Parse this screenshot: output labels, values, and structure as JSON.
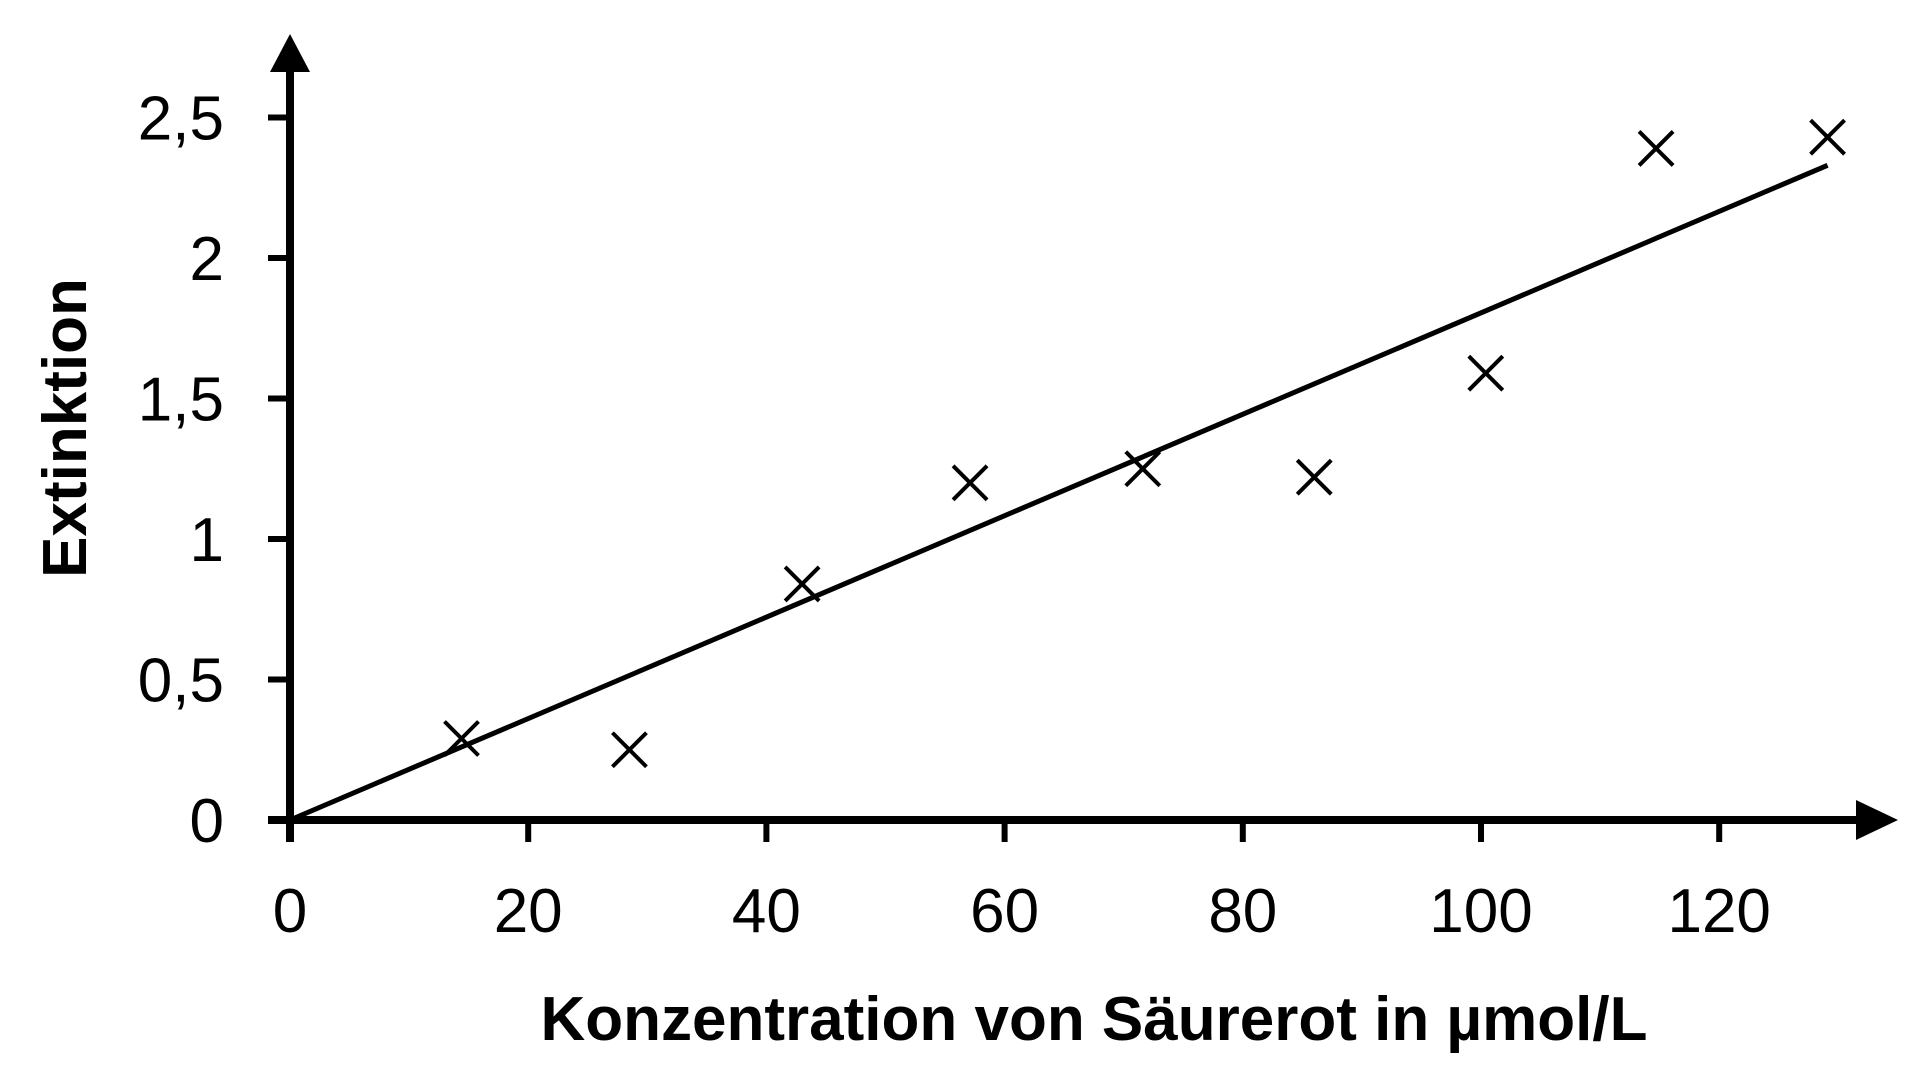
{
  "chart_data": {
    "type": "scatter",
    "title": "",
    "xlabel": "Konzentration von Säurerot in µmol/L",
    "ylabel": "Extinktion",
    "xlim": [
      0,
      135
    ],
    "ylim": [
      0,
      2.7
    ],
    "x_ticks": [
      0,
      20,
      40,
      60,
      80,
      100,
      120
    ],
    "x_tick_labels": [
      "0",
      "20",
      "40",
      "60",
      "80",
      "100",
      "120"
    ],
    "y_ticks": [
      0,
      0.5,
      1,
      1.5,
      2,
      2.5
    ],
    "y_tick_labels": [
      "0",
      "0,5",
      "1",
      "1,5",
      "2",
      "2,5"
    ],
    "grid": false,
    "marker": "x",
    "series": [
      {
        "x": [
          14.4,
          28.5,
          43.0,
          57.1,
          71.6,
          86.0,
          100.4,
          114.7,
          129.1
        ],
        "y": [
          0.29,
          0.25,
          0.84,
          1.2,
          1.25,
          1.22,
          1.59,
          2.39,
          2.43
        ]
      }
    ],
    "fit_line": {
      "x": [
        0,
        129.1
      ],
      "y": [
        0,
        2.33
      ]
    },
    "colors": {
      "ink": "#000000",
      "background": "#ffffff"
    }
  }
}
